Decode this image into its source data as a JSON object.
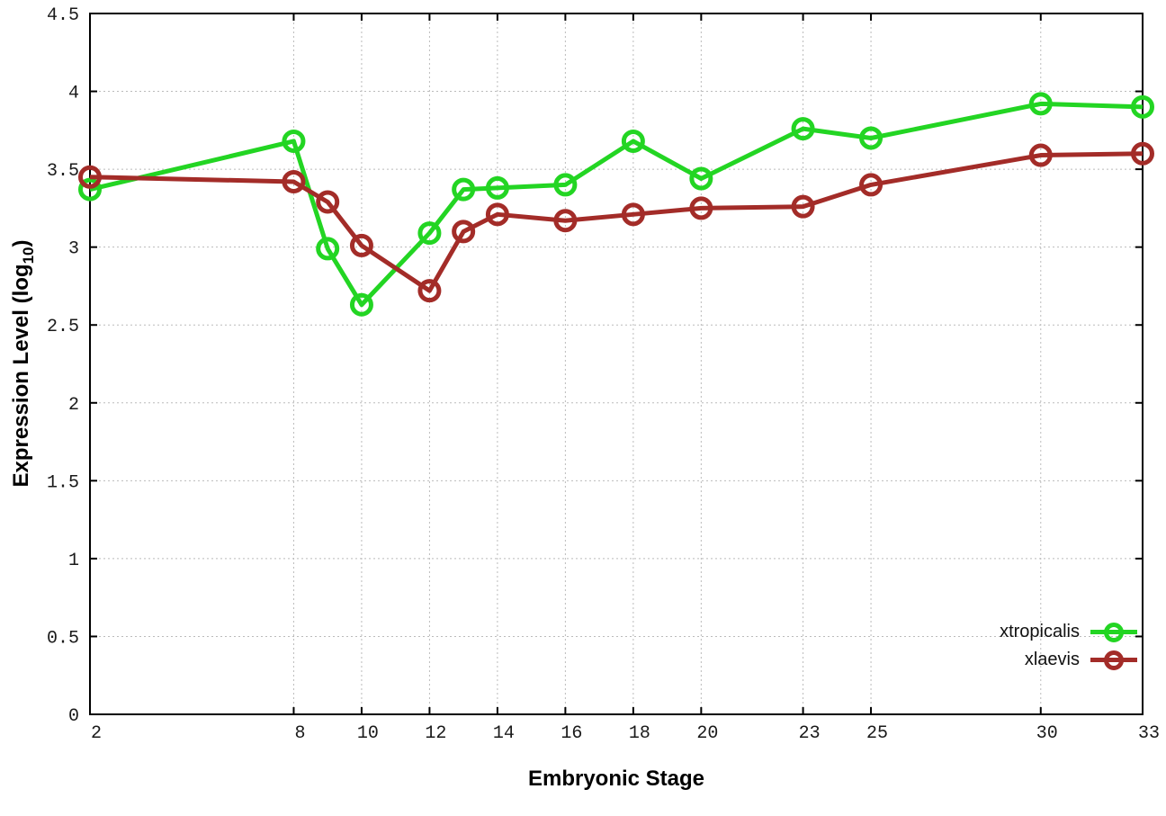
{
  "chart_data": {
    "type": "line",
    "title": "",
    "xlabel": "Embryonic Stage",
    "ylabel": "Expression Level (log10)",
    "ylabel_parts": {
      "prefix": "Expression Level (log",
      "subscript": "10",
      "suffix": ")"
    },
    "x": [
      2,
      8,
      9,
      10,
      12,
      13,
      14,
      16,
      18,
      20,
      23,
      25,
      30,
      33
    ],
    "series": [
      {
        "name": "xtropicalis",
        "color": "#23d523",
        "values": [
          3.37,
          3.68,
          2.99,
          2.63,
          3.09,
          3.37,
          3.38,
          3.4,
          3.68,
          3.44,
          3.76,
          3.7,
          3.92,
          3.9
        ]
      },
      {
        "name": "xlaevis",
        "color": "#a32c28",
        "values": [
          3.45,
          3.42,
          3.29,
          3.01,
          2.72,
          3.1,
          3.21,
          3.17,
          3.21,
          3.25,
          3.26,
          3.4,
          3.59,
          3.6
        ]
      }
    ],
    "xlim": [
      2,
      33
    ],
    "ylim": [
      0,
      4.5
    ],
    "x_ticks": [
      2,
      8,
      10,
      12,
      14,
      16,
      18,
      20,
      23,
      25,
      30,
      33
    ],
    "y_ticks": [
      0,
      0.5,
      1,
      1.5,
      2,
      2.5,
      3,
      3.5,
      4,
      4.5
    ],
    "grid": true,
    "legend_position": "bottom-right",
    "colors": {
      "border": "#000000",
      "grid": "#bbbbbb",
      "tick_text": "#1a1a1a"
    }
  }
}
